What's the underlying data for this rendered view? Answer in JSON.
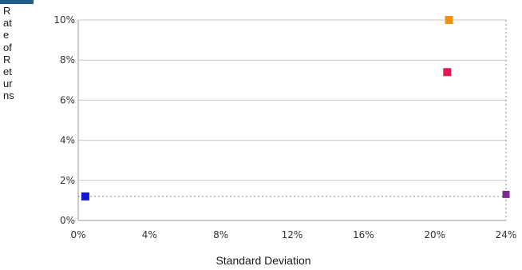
{
  "chart_data": {
    "type": "scatter",
    "xlabel": "Standard Deviation",
    "ylabel": "Rate of Returns",
    "x_ticks": [
      "0%",
      "4%",
      "8%",
      "12%",
      "16%",
      "20%",
      "24%"
    ],
    "y_ticks": [
      "0%",
      "2%",
      "4%",
      "6%",
      "8%",
      "10%"
    ],
    "xlim": [
      0,
      24
    ],
    "ylim": [
      0,
      10
    ],
    "grid": "horizontal",
    "points": [
      {
        "x": 0.4,
        "y": 1.2,
        "color": "#1515d6"
      },
      {
        "x": 20.8,
        "y": 10.0,
        "color": "#f2900f"
      },
      {
        "x": 20.7,
        "y": 7.4,
        "color": "#e3194f"
      },
      {
        "x": 24.0,
        "y": 1.3,
        "color": "#7b2a96"
      }
    ],
    "reference_lines": [
      {
        "orientation": "horizontal",
        "y": 1.2
      },
      {
        "orientation": "vertical",
        "x": 24.0
      }
    ],
    "colors": {
      "grid": "#c8c8c8",
      "axis": "#9a9a9a",
      "reference": "#8a8a8a",
      "accent_tab": "#1f5e8c"
    }
  }
}
